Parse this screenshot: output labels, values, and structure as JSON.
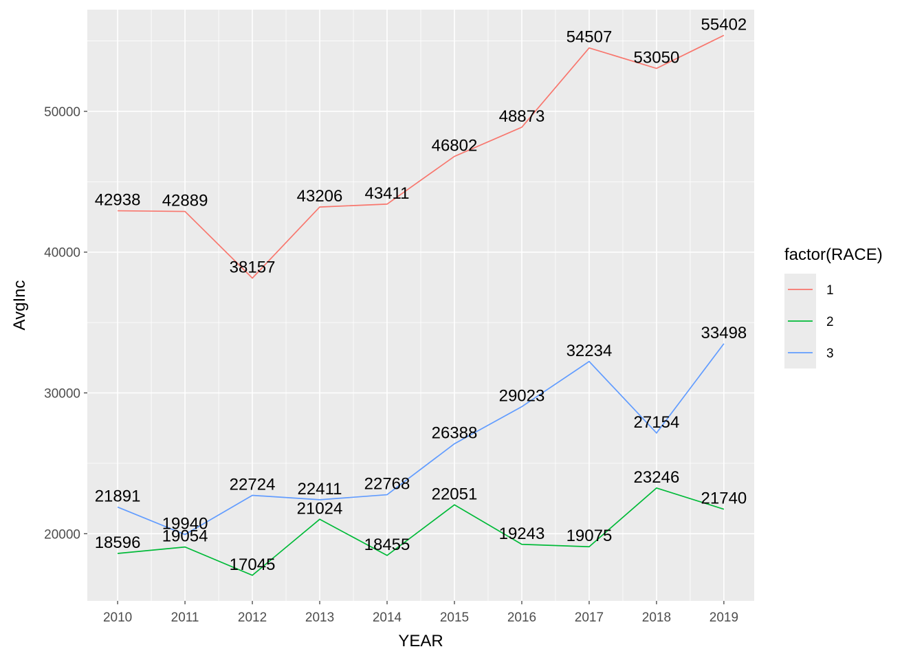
{
  "chart_data": {
    "type": "line",
    "xlabel": "YEAR",
    "ylabel": "AvgInc",
    "x": [
      2010,
      2011,
      2012,
      2013,
      2014,
      2015,
      2016,
      2017,
      2018,
      2019
    ],
    "xticks": [
      "2010",
      "2011",
      "2012",
      "2013",
      "2014",
      "2015",
      "2016",
      "2017",
      "2018",
      "2019"
    ],
    "ylim": [
      15228,
      57226
    ],
    "yticks": [
      "20000",
      "30000",
      "40000",
      "50000"
    ],
    "grid": true,
    "legend": {
      "title": "factor(RACE)",
      "placement": "right"
    },
    "series": [
      {
        "name": "1",
        "color": "#F8766D",
        "values": [
          42938,
          42889,
          38157,
          43206,
          43411,
          46802,
          48873,
          54507,
          53050,
          55402
        ]
      },
      {
        "name": "2",
        "color": "#00BA38",
        "values": [
          18596,
          19054,
          17045,
          21024,
          18455,
          22051,
          19243,
          19075,
          23246,
          21740
        ]
      },
      {
        "name": "3",
        "color": "#619CFF",
        "values": [
          21891,
          19940,
          22724,
          22411,
          22768,
          26388,
          29023,
          32234,
          27154,
          33498
        ]
      }
    ]
  }
}
